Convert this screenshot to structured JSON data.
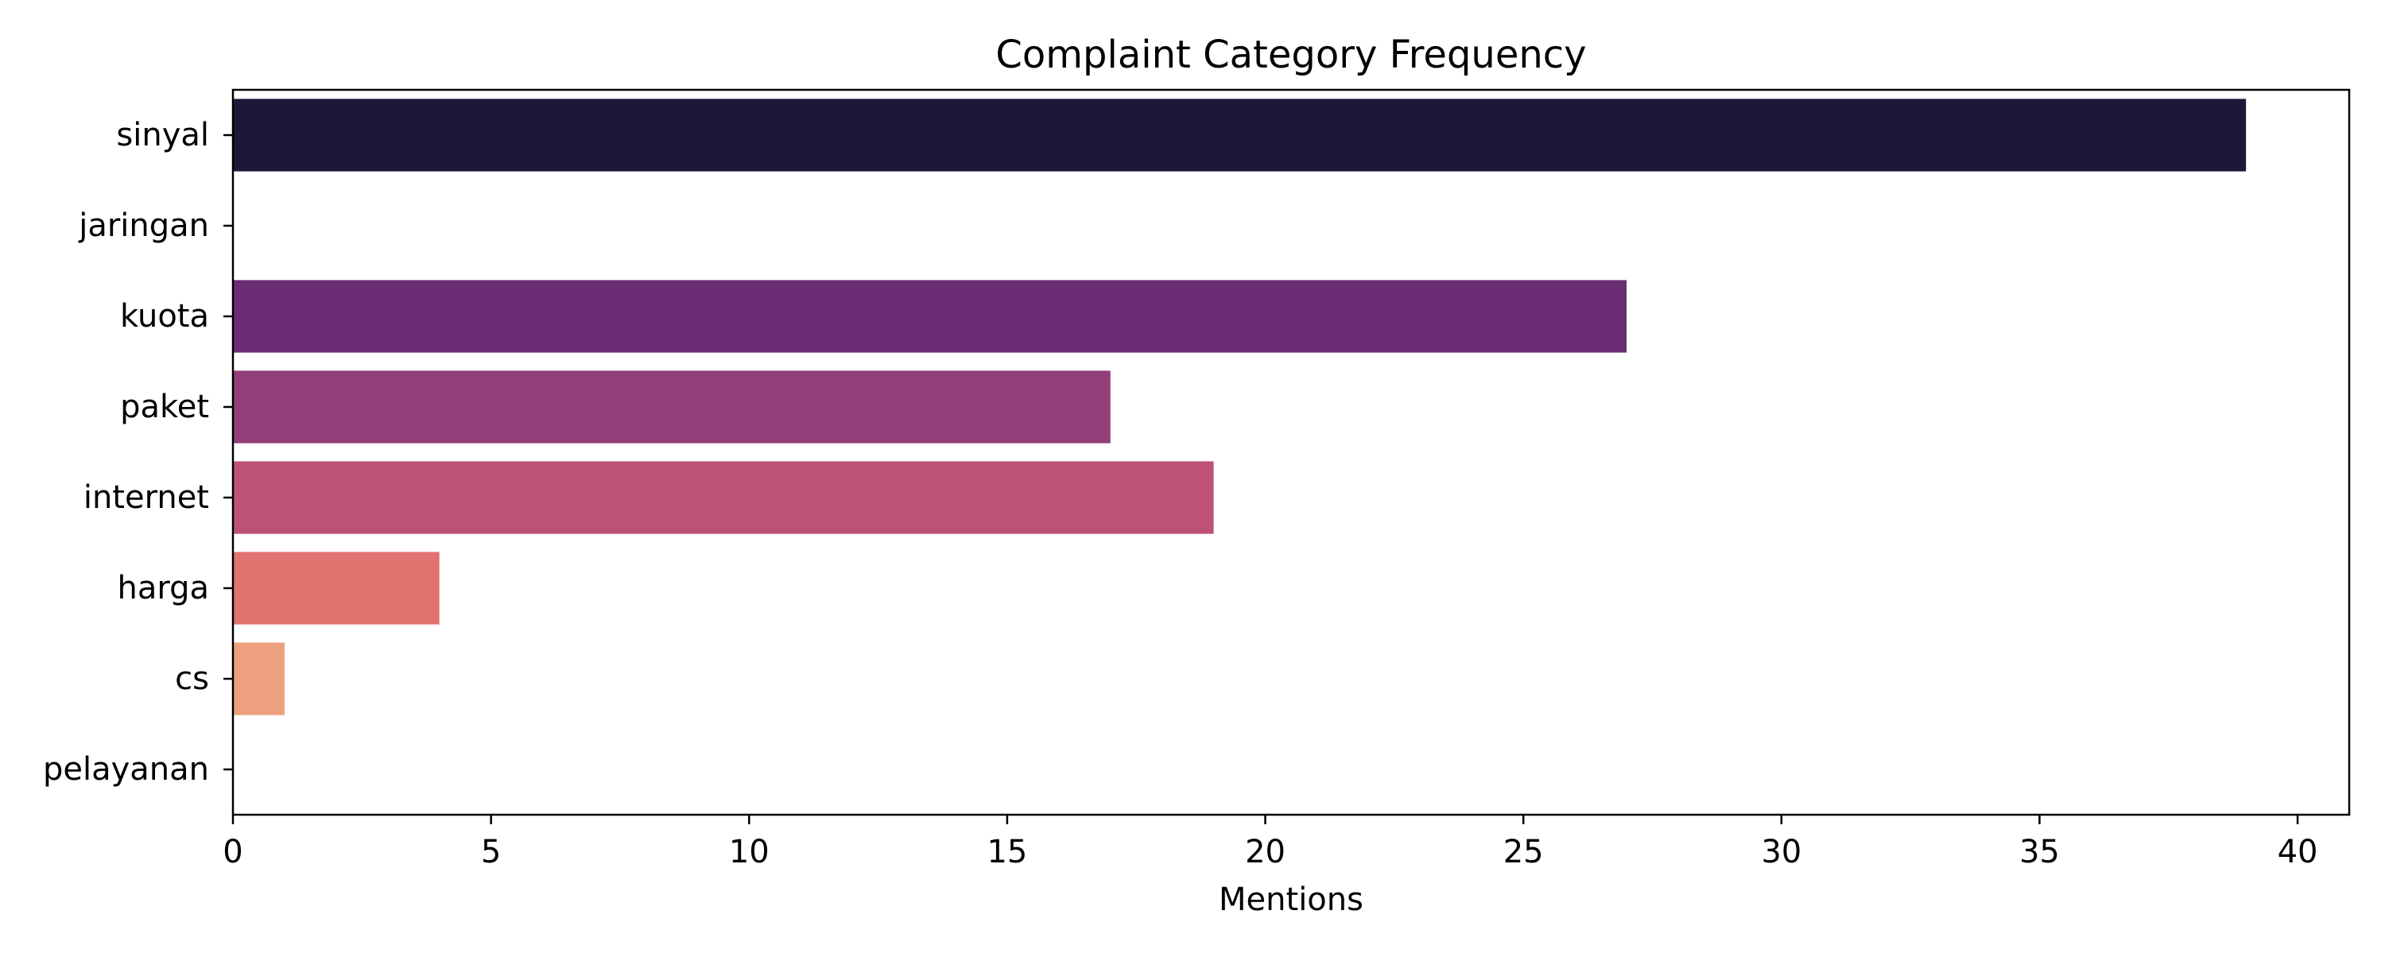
{
  "chart_data": {
    "type": "bar",
    "orientation": "horizontal",
    "title": "Complaint Category Frequency",
    "xlabel": "Mentions",
    "ylabel": "",
    "xlim": [
      0,
      41
    ],
    "xticks": [
      0,
      5,
      10,
      15,
      20,
      25,
      30,
      35,
      40
    ],
    "categories": [
      "sinyal",
      "jaringan",
      "kuota",
      "paket",
      "internet",
      "harga",
      "cs",
      "pelayanan"
    ],
    "values": [
      39,
      0,
      27,
      17,
      19,
      4,
      1,
      0
    ],
    "colors": [
      "#1d1739",
      "#40185c",
      "#6a2c73",
      "#923e78",
      "#bd5275",
      "#e07370",
      "#eca07d",
      "#f5d3a6"
    ],
    "grid": false,
    "legend": "none"
  }
}
